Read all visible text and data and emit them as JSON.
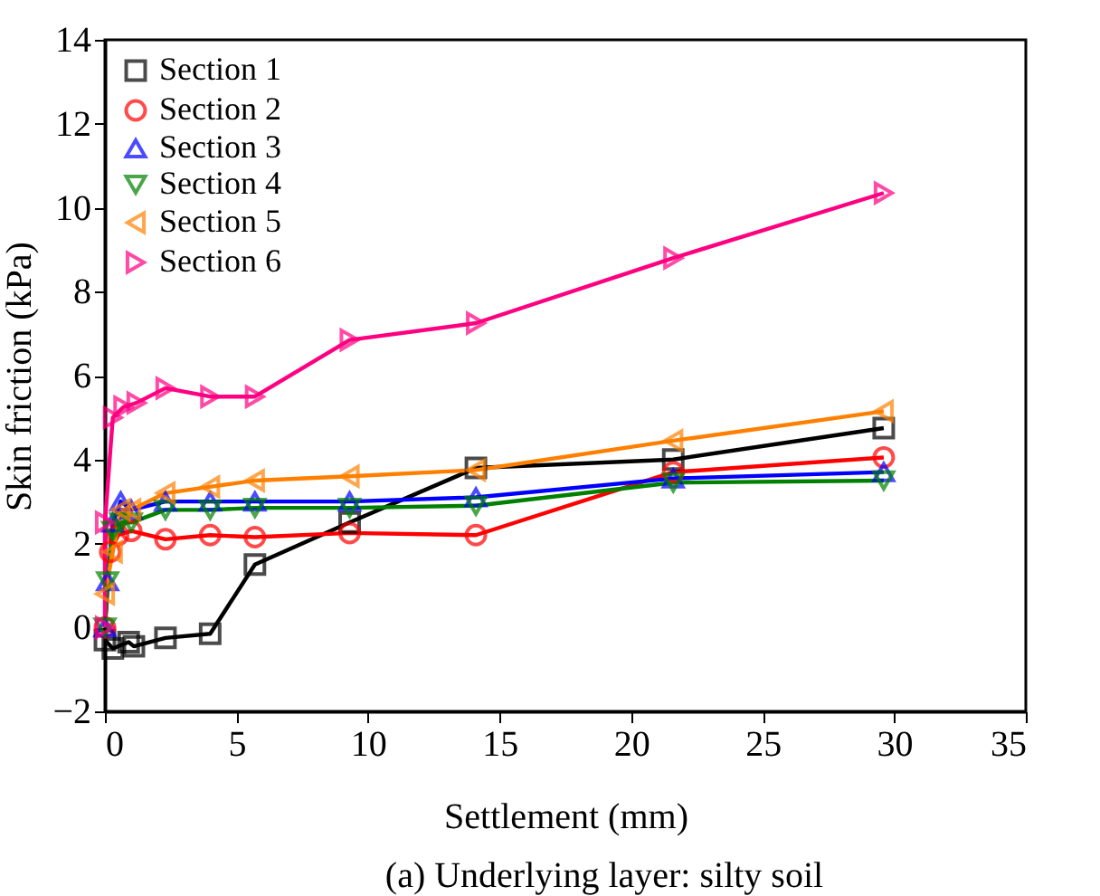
{
  "chart_data": {
    "type": "line",
    "xlabel": "Settlement (mm)",
    "ylabel": "Skin friction (kPa)",
    "annotations": [
      "(a) Underlying layer: silty soil"
    ],
    "xlim": [
      0,
      35
    ],
    "xticks": [
      0,
      5,
      10,
      15,
      20,
      25,
      30,
      35
    ],
    "ylim": [
      -2,
      14
    ],
    "yticks": [
      -2,
      0,
      2,
      4,
      6,
      8,
      10,
      12,
      14
    ],
    "grid": false,
    "legend": "top left",
    "series": [
      {
        "name": "Section 1",
        "color": "#000000",
        "marker": "square",
        "x": [
          0,
          0.3,
          0.9,
          1.1,
          2.3,
          4,
          5.7,
          9.3,
          14.1,
          21.6,
          29.6
        ],
        "values": [
          -0.3,
          -0.5,
          -0.35,
          -0.45,
          -0.25,
          -0.15,
          1.5,
          2.5,
          3.8,
          4.0,
          4.75
        ]
      },
      {
        "name": "Section 2",
        "color": "#ff0000",
        "marker": "circle",
        "x": [
          0,
          0.2,
          0.5,
          1,
          2.3,
          4,
          5.7,
          9.3,
          14.1,
          21.6,
          29.6
        ],
        "values": [
          0,
          1.8,
          2.2,
          2.3,
          2.1,
          2.2,
          2.15,
          2.25,
          2.2,
          3.7,
          4.05
        ]
      },
      {
        "name": "Section 3",
        "color": "#0000ff",
        "marker": "triangle",
        "x": [
          0,
          0.1,
          0.3,
          0.6,
          1,
          2.3,
          4,
          5.7,
          9.3,
          14.1,
          21.6,
          29.6
        ],
        "values": [
          0,
          1.1,
          2.5,
          3.0,
          2.8,
          3.0,
          3.0,
          3.0,
          3.0,
          3.1,
          3.55,
          3.7
        ]
      },
      {
        "name": "Section 4",
        "color": "#008000",
        "marker": "triangle-down",
        "x": [
          0,
          0.1,
          0.3,
          0.6,
          1,
          2.3,
          4,
          5.7,
          9.3,
          14.1,
          21.6,
          29.6
        ],
        "values": [
          0,
          1.1,
          2.3,
          2.5,
          2.5,
          2.8,
          2.8,
          2.85,
          2.85,
          2.9,
          3.45,
          3.5
        ]
      },
      {
        "name": "Section 5",
        "color": "#ff8000",
        "marker": "triangle-left",
        "x": [
          0,
          0.3,
          0.6,
          1,
          2.3,
          4,
          5.7,
          9.3,
          14.1,
          21.6,
          29.6
        ],
        "values": [
          0.8,
          1.8,
          2.8,
          2.8,
          3.2,
          3.35,
          3.5,
          3.6,
          3.75,
          4.45,
          5.15
        ]
      },
      {
        "name": "Section 6",
        "color": "#ff0080",
        "marker": "triangle-right",
        "x": [
          0,
          0,
          0.3,
          0.7,
          1.2,
          2.3,
          4,
          5.7,
          9.3,
          14.1,
          21.6,
          29.6
        ],
        "values": [
          0,
          2.5,
          5.0,
          5.25,
          5.35,
          5.7,
          5.5,
          5.5,
          6.85,
          7.25,
          8.8,
          10.35
        ]
      }
    ]
  }
}
